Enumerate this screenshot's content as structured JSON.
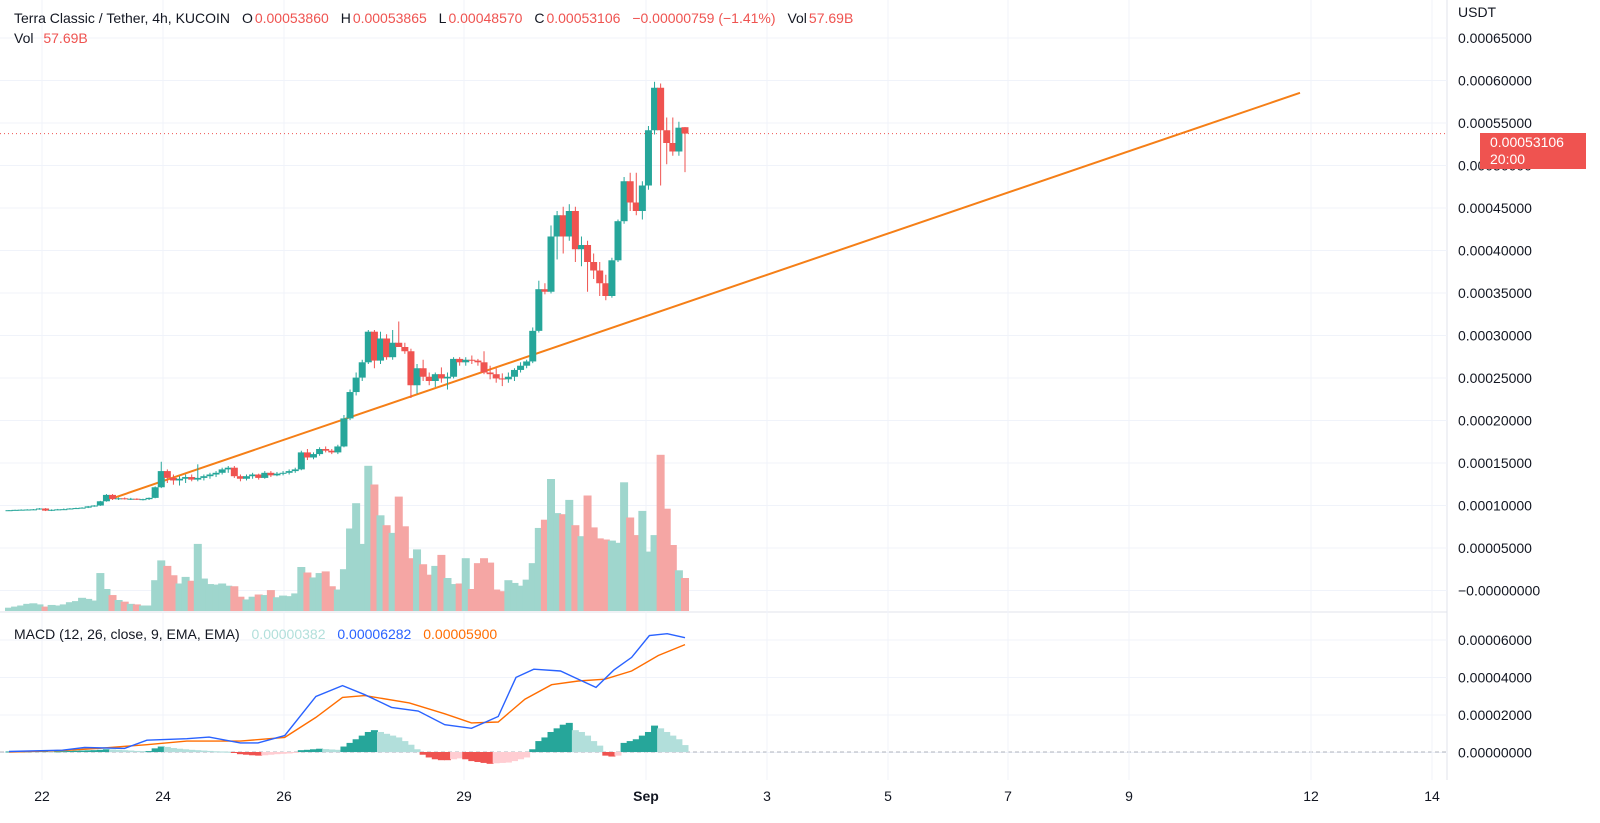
{
  "legend": {
    "title": "Terra Classic / Tether, 4h, KUCOIN",
    "open_label": "O",
    "open": "0.00053860",
    "high_label": "H",
    "high": "0.00053865",
    "low_label": "L",
    "low": "0.00048570",
    "close_label": "C",
    "close": "0.00053106",
    "change": "−0.00000759 (−1.41%)",
    "vol_label": "Vol",
    "vol": "57.69B",
    "vol_row_label": "Vol",
    "vol_row_value": "57.69B"
  },
  "macd_legend": {
    "title": "MACD (12, 26, close, 9, EMA, EMA)",
    "histogram": "0.00000382",
    "macd": "0.00006282",
    "signal": "0.00005900"
  },
  "price_axis": {
    "currency": "USDT",
    "last_price": "0.00053106",
    "countdown": "20:00"
  },
  "colors": {
    "up": "#26a69a",
    "down": "#ef5350",
    "vol_up": "#9fd6cd",
    "vol_down": "#f5a6a4",
    "trendline": "#f57f17",
    "macd_line": "#2962ff",
    "signal_line": "#ff6d00",
    "hist_pos_strong": "#26a69a",
    "hist_pos_weak": "#b2dfdb",
    "hist_neg_strong": "#ef5350",
    "hist_neg_weak": "#ffcdd2"
  },
  "chart_data": [
    {
      "type": "candlestick",
      "interval": "4h",
      "ylim": [
        -0.0,
        0.00065
      ],
      "y_ticks": [
        "0.00065000",
        "0.00060000",
        "0.00055000",
        "0.00050000",
        "0.00045000",
        "0.00040000",
        "0.00035000",
        "0.00030000",
        "0.00025000",
        "0.00020000",
        "0.00015000",
        "0.00010000",
        "0.00005000",
        "−0.00000000"
      ],
      "x_ticks": [
        "22",
        "24",
        "26",
        "29",
        "Sep",
        "3",
        "5",
        "7",
        "9",
        "12",
        "14"
      ],
      "candles": [
        [
          8.8e-05,
          8.83e-05,
          8.76e-05,
          8.8e-05
        ],
        [
          8.8e-05,
          8.86e-05,
          8.76e-05,
          8.84e-05
        ],
        [
          8.84e-05,
          8.9e-05,
          8.8e-05,
          8.86e-05
        ],
        [
          8.86e-05,
          8.92e-05,
          8.82e-05,
          8.88e-05
        ],
        [
          8.88e-05,
          8.94e-05,
          8.84e-05,
          8.9e-05
        ],
        [
          8.9e-05,
          9.05e-05,
          8.86e-05,
          9e-05
        ],
        [
          9e-05,
          9.05e-05,
          8.7e-05,
          8.75e-05
        ],
        [
          8.75e-05,
          8.9e-05,
          8.7e-05,
          8.85e-05
        ],
        [
          8.85e-05,
          8.95e-05,
          8.8e-05,
          8.9e-05
        ],
        [
          8.9e-05,
          9e-05,
          8.85e-05,
          8.92e-05
        ],
        [
          8.92e-05,
          9.05e-05,
          8.88e-05,
          9e-05
        ],
        [
          9e-05,
          9.1e-05,
          8.95e-05,
          9.05e-05
        ],
        [
          9.05e-05,
          9.15e-05,
          9e-05,
          9.1e-05
        ],
        [
          9.1e-05,
          9.3e-05,
          9.05e-05,
          9.25e-05
        ],
        [
          9.25e-05,
          9.4e-05,
          9.2e-05,
          9.35e-05
        ],
        [
          9.35e-05,
          9.9e-05,
          9.3e-05,
          9.85e-05
        ],
        [
          9.85e-05,
          0.000107,
          9.8e-05,
          0.000106
        ],
        [
          0.000106,
          0.000107,
          0.0001,
          0.000101
        ],
        [
          0.000101,
          0.000103,
          0.0001,
          0.000102
        ],
        [
          0.000102,
          0.000103,
          0.0001005,
          0.000101
        ],
        [
          0.000101,
          0.0001025,
          0.0001,
          0.0001015
        ],
        [
          0.0001015,
          0.000102,
          0.0001,
          0.0001005
        ],
        [
          0.0001005,
          0.0001015,
          9.95e-05,
          0.000101
        ],
        [
          0.000101,
          0.000103,
          0.0001,
          0.0001025
        ],
        [
          0.0001025,
          0.000116,
          0.000102,
          0.000115
        ],
        [
          0.000115,
          0.000145,
          0.000114,
          0.000134
        ],
        [
          0.000134,
          0.000136,
          0.00012,
          0.000126
        ],
        [
          0.000126,
          0.00013,
          0.000118,
          0.000123
        ],
        [
          0.000123,
          0.000128,
          0.000117,
          0.000125
        ],
        [
          0.000125,
          0.00013,
          0.00012,
          0.000127
        ],
        [
          0.000127,
          0.00013,
          0.000122,
          0.000124
        ],
        [
          0.000124,
          0.000142,
          0.000122,
          0.000126
        ],
        [
          0.000126,
          0.00013,
          0.000123,
          0.000128
        ],
        [
          0.000128,
          0.000132,
          0.000125,
          0.00013
        ],
        [
          0.00013,
          0.000134,
          0.000127,
          0.000132
        ],
        [
          0.000132,
          0.000138,
          0.00013,
          0.000136
        ],
        [
          0.000136,
          0.00014,
          0.000132,
          0.000138
        ],
        [
          0.000138,
          0.00014,
          0.000126,
          0.000128
        ],
        [
          0.000128,
          0.00013,
          0.000122,
          0.000125
        ],
        [
          0.000125,
          0.00013,
          0.000123,
          0.000128
        ],
        [
          0.000128,
          0.000132,
          0.000125,
          0.00013
        ],
        [
          0.00013,
          0.000131,
          0.000124,
          0.000126
        ],
        [
          0.000126,
          0.000134,
          0.000125,
          0.000132
        ],
        [
          0.000132,
          0.000134,
          0.000127,
          0.000129
        ],
        [
          0.000129,
          0.000133,
          0.000128,
          0.000131
        ],
        [
          0.000131,
          0.000134,
          0.000129,
          0.000132
        ],
        [
          0.000132,
          0.000136,
          0.00013,
          0.000134
        ],
        [
          0.000134,
          0.000138,
          0.000132,
          0.000136
        ],
        [
          0.000136,
          0.000158,
          0.000135,
          0.000156
        ],
        [
          0.000156,
          0.00016,
          0.000147,
          0.00015
        ],
        [
          0.00015,
          0.000156,
          0.000148,
          0.000154
        ],
        [
          0.000154,
          0.000162,
          0.000152,
          0.00016
        ],
        [
          0.00016,
          0.000163,
          0.000156,
          0.000158
        ],
        [
          0.000158,
          0.00016,
          0.000154,
          0.000156
        ],
        [
          0.000156,
          0.000165,
          0.000154,
          0.000163
        ],
        [
          0.000163,
          0.0002,
          0.000162,
          0.000196
        ],
        [
          0.000196,
          0.00023,
          0.000194,
          0.000227
        ],
        [
          0.000227,
          0.00025,
          0.000223,
          0.000244
        ],
        [
          0.000244,
          0.000265,
          0.00024,
          0.000262
        ],
        [
          0.000262,
          0.0003,
          0.00026,
          0.000298
        ],
        [
          0.000298,
          0.0003,
          0.000255,
          0.000264
        ],
        [
          0.000264,
          0.000298,
          0.00026,
          0.00029
        ],
        [
          0.00029,
          0.000295,
          0.000265,
          0.000268
        ],
        [
          0.000268,
          0.0003,
          0.000265,
          0.000285
        ],
        [
          0.000285,
          0.00031,
          0.00028,
          0.00028
        ],
        [
          0.00028,
          0.000285,
          0.000272,
          0.000275
        ],
        [
          0.000275,
          0.000278,
          0.00022,
          0.000235
        ],
        [
          0.000235,
          0.00026,
          0.000225,
          0.000255
        ],
        [
          0.000255,
          0.000265,
          0.00024,
          0.000245
        ],
        [
          0.000245,
          0.00025,
          0.000235,
          0.00024
        ],
        [
          0.00024,
          0.00025,
          0.000233,
          0.000248
        ],
        [
          0.000248,
          0.000256,
          0.000238,
          0.000243
        ],
        [
          0.000243,
          0.00025,
          0.00023,
          0.000245
        ],
        [
          0.000245,
          0.000268,
          0.000243,
          0.000266
        ],
        [
          0.000266,
          0.000268,
          0.000258,
          0.000262
        ],
        [
          0.000262,
          0.000268,
          0.000258,
          0.000265
        ],
        [
          0.000265,
          0.00027,
          0.00026,
          0.000264
        ],
        [
          0.000264,
          0.000266,
          0.000258,
          0.000262
        ],
        [
          0.000262,
          0.000275,
          0.000248,
          0.00025
        ],
        [
          0.00025,
          0.000258,
          0.000242,
          0.000248
        ],
        [
          0.000248,
          0.000255,
          0.000238,
          0.000243
        ],
        [
          0.000243,
          0.000249,
          0.000234,
          0.000242
        ],
        [
          0.000242,
          0.00025,
          0.000238,
          0.000245
        ],
        [
          0.000245,
          0.000255,
          0.00024,
          0.000253
        ],
        [
          0.000253,
          0.000262,
          0.00025,
          0.000258
        ],
        [
          0.000258,
          0.000265,
          0.000255,
          0.000263
        ],
        [
          0.000263,
          0.000303,
          0.000261,
          0.000299
        ],
        [
          0.000299,
          0.000358,
          0.000297,
          0.000348
        ],
        [
          0.000348,
          0.000355,
          0.000342,
          0.000345
        ],
        [
          0.000345,
          0.000423,
          0.000343,
          0.00041
        ],
        [
          0.00041,
          0.00044,
          0.000383,
          0.000435
        ],
        [
          0.000435,
          0.000445,
          0.00039,
          0.00041
        ],
        [
          0.00041,
          0.000448,
          0.000405,
          0.00044
        ],
        [
          0.00044,
          0.000445,
          0.00038,
          0.000395
        ],
        [
          0.000395,
          0.00041,
          0.000375,
          0.0004
        ],
        [
          0.0004,
          0.000405,
          0.000345,
          0.00038
        ],
        [
          0.00038,
          0.00039,
          0.00036,
          0.00037
        ],
        [
          0.00037,
          0.00038,
          0.00034,
          0.000355
        ],
        [
          0.000355,
          0.000365,
          0.000335,
          0.00034
        ],
        [
          0.00034,
          0.000385,
          0.000338,
          0.000382
        ],
        [
          0.000382,
          0.00043,
          0.00038,
          0.000428
        ],
        [
          0.000428,
          0.00048,
          0.000425,
          0.000475
        ],
        [
          0.000475,
          0.000485,
          0.00044,
          0.00045
        ],
        [
          0.00045,
          0.000485,
          0.000435,
          0.00044
        ],
        [
          0.00044,
          0.000475,
          0.00043,
          0.00047
        ],
        [
          0.00047,
          0.00054,
          0.000465,
          0.000535
        ],
        [
          0.000535,
          0.000592,
          0.00053,
          0.000585
        ],
        [
          0.000585,
          0.00059,
          0.00047,
          0.000535
        ],
        [
          0.000535,
          0.00055,
          0.000495,
          0.00052
        ],
        [
          0.00052,
          0.00055,
          0.000505,
          0.00051
        ],
        [
          0.00051,
          0.000545,
          0.000505,
          0.000538
        ],
        [
          0.0005386,
          0.0005387,
          0.0004857,
          0.0005311
        ]
      ],
      "trendline": [
        [
          17,
          0.000102
        ],
        [
          108,
          0.000579
        ]
      ]
    },
    {
      "type": "bar",
      "series": "volume",
      "ylim": [
        0,
        0.00022
      ],
      "values": [
        3e-06,
        4e-06,
        5e-06,
        6.5e-06,
        7e-06,
        6e-06,
        4e-06,
        5.5e-06,
        5e-06,
        6e-06,
        8e-06,
        9e-06,
        1.2e-05,
        1.1e-05,
        9.5e-06,
        3.45e-05,
        2e-05,
        1.45e-05,
        1e-05,
        8.5e-06,
        6.5e-06,
        6e-06,
        5e-06,
        5e-06,
        2.8e-05,
        4.6e-05,
        4.1e-05,
        3.25e-05,
        2.5e-05,
        3.1e-05,
        2.75e-05,
        6.1e-05,
        2.95e-05,
        2.45e-05,
        2.4e-05,
        2.5e-05,
        2.3e-05,
        2.25e-05,
        1.3e-05,
        1.05e-05,
        1.3e-05,
        1.5e-05,
        1.45e-05,
        1.9e-05,
        1.25e-05,
        1.4e-05,
        1.35e-05,
        1.6e-05,
        4e-05,
        3.5e-05,
        3.05e-05,
        3.45e-05,
        3.6e-05,
        2.25e-05,
        1.95e-05,
        3.8e-05,
        7.5e-05,
        9.8e-05,
        6.1e-05,
        0.000132,
        0.000115,
        8.7e-05,
        7.8e-05,
        7.1e-05,
        0.000104,
        7.7e-05,
        4.8e-05,
        5.6e-05,
        4.25e-05,
        3.3e-05,
        4.1e-05,
        5.1e-05,
        3e-05,
        2.45e-05,
        2.5e-05,
        4.8e-05,
        2e-05,
        4.35e-05,
        4.8e-05,
        4.4e-05,
        1.95e-05,
        1.8e-05,
        2.8e-05,
        2.55e-05,
        2.3e-05,
        2.85e-05,
        4.35e-05,
        7.55e-05,
        8.3e-05,
        0.00012,
        8.9e-05,
        8.8e-05,
        0.000101,
        7.8e-05,
        6.8e-05,
        0.000105,
        7.6e-05,
        6.6e-05,
        6.5e-05,
        6.4e-05,
        6.2e-05,
        0.000117,
        8.5e-05,
        6.9e-05,
        9.1e-05,
        5.4e-05,
        6.9e-05,
        0.000142,
        9.3e-05,
        6e-05,
        3.7e-05,
        3e-05
      ]
    },
    {
      "type": "line",
      "series": "MACD",
      "ylim": [
        -5e-06,
        7e-05
      ],
      "y_ticks": [
        "0.00006000",
        "0.00004000",
        "0.00002000",
        "0.00000000"
      ],
      "macd_points": [
        [
          0,
          3e-07
        ],
        [
          12,
          1e-06
        ],
        [
          17,
          2.5e-06
        ],
        [
          26,
          2e-06
        ],
        [
          31,
          6.5e-06
        ],
        [
          40,
          7.3e-06
        ],
        [
          45,
          8.2e-06
        ],
        [
          52,
          5e-06
        ],
        [
          56,
          5e-06
        ],
        [
          62,
          9e-06
        ],
        [
          69,
          3.05e-05
        ],
        [
          75,
          3.65e-05
        ],
        [
          80,
          3.15e-05
        ],
        [
          86,
          2.45e-05
        ],
        [
          92,
          2.25e-05
        ],
        [
          98,
          1.5e-05
        ],
        [
          104,
          1.3e-05
        ],
        [
          110,
          1.95e-05
        ],
        [
          114,
          4.1e-05
        ],
        [
          118,
          4.55e-05
        ],
        [
          124,
          4.45e-05
        ],
        [
          128,
          4e-05
        ],
        [
          132,
          3.55e-05
        ],
        [
          136,
          4.5e-05
        ],
        [
          140,
          5.2e-05
        ],
        [
          144,
          6.4e-05
        ],
        [
          148,
          6.5e-05
        ],
        [
          152,
          6.28e-05
        ]
      ],
      "signal_points": [
        [
          0,
          0.0
        ],
        [
          12,
          8e-07
        ],
        [
          20,
          2e-06
        ],
        [
          31,
          4e-06
        ],
        [
          40,
          6e-06
        ],
        [
          52,
          6e-06
        ],
        [
          62,
          8e-06
        ],
        [
          69,
          1.9e-05
        ],
        [
          75,
          3e-05
        ],
        [
          80,
          3.1e-05
        ],
        [
          90,
          2.7e-05
        ],
        [
          98,
          2.1e-05
        ],
        [
          104,
          1.6e-05
        ],
        [
          110,
          1.65e-05
        ],
        [
          116,
          2.9e-05
        ],
        [
          122,
          3.7e-05
        ],
        [
          128,
          3.9e-05
        ],
        [
          134,
          4e-05
        ],
        [
          140,
          4.45e-05
        ],
        [
          146,
          5.3e-05
        ],
        [
          152,
          5.9e-05
        ]
      ],
      "histogram": [
        3e-07,
        3e-07,
        4e-07,
        4e-07,
        5e-07,
        5e-07,
        5e-07,
        4e-07,
        4e-07,
        5e-07,
        6e-07,
        7e-07,
        8e-07,
        9e-07,
        1e-06,
        1.2e-06,
        1.5e-06,
        1.4e-06,
        1.2e-06,
        1e-06,
        8e-07,
        6e-07,
        5e-07,
        5e-07,
        2e-06,
        3e-06,
        2.8e-06,
        2.2e-06,
        1.8e-06,
        1.5e-06,
        1.2e-06,
        1e-06,
        8e-07,
        6e-07,
        4e-07,
        3e-07,
        2e-07,
        -5e-07,
        -1.2e-06,
        -1.5e-06,
        -1.8e-06,
        -2e-06,
        -1.8e-06,
        -1.5e-06,
        -1.2e-06,
        -1e-06,
        -8e-07,
        -5e-07,
        1e-06,
        1.2e-06,
        1.5e-06,
        1.8e-06,
        1.6e-06,
        1.4e-06,
        1.2e-06,
        3e-06,
        5e-06,
        7e-06,
        9e-06,
        1.1e-05,
        1.2e-05,
        1.1e-05,
        1e-05,
        9e-06,
        8e-06,
        6e-06,
        4e-06,
        1.5e-06,
        -1.5e-06,
        -3e-06,
        -4e-06,
        -4.5e-06,
        -4.5e-06,
        -4e-06,
        -3.5e-06,
        -4e-06,
        -5e-06,
        -5.5e-06,
        -6e-06,
        -6.5e-06,
        -6.2e-06,
        -6e-06,
        -5.8e-06,
        -5e-06,
        -4e-06,
        -3e-06,
        1.5e-06,
        6e-06,
        8e-06,
        1.1e-05,
        1.3e-05,
        1.5e-05,
        1.6e-05,
        1.2e-05,
        1.1e-05,
        9e-06,
        6e-06,
        3.5e-06,
        -2e-06,
        -2.5e-06,
        -2e-06,
        5e-06,
        6e-06,
        7e-06,
        9e-06,
        1.1e-05,
        1.45e-05,
        1.3e-05,
        1.1e-05,
        9e-06,
        7e-06,
        3.8e-06
      ]
    }
  ]
}
